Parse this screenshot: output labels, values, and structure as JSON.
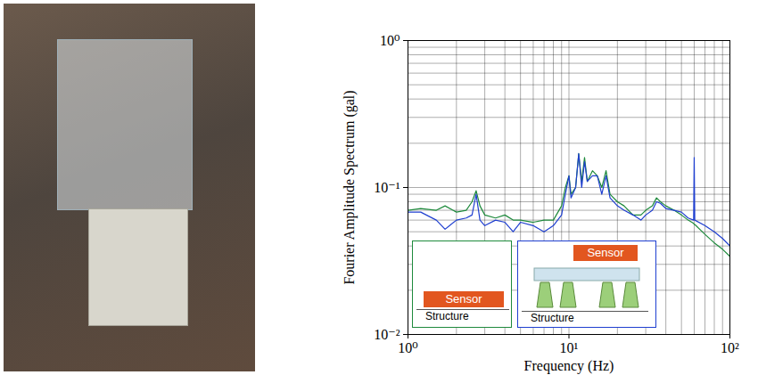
{
  "chart_data": {
    "type": "line",
    "xlabel": "Frequency (Hz)",
    "ylabel": "Fourier Amplitude Spectrum (gal)",
    "log": true,
    "grid": true,
    "xlim": [
      1,
      100
    ],
    "ylim": [
      0.01,
      1
    ],
    "xticks": [
      {
        "value": 1,
        "label": "10⁰"
      },
      {
        "value": 10,
        "label": "10¹"
      },
      {
        "value": 100,
        "label": "10²"
      }
    ],
    "yticks": [
      {
        "value": 0.01,
        "label": "10⁻²"
      },
      {
        "value": 0.1,
        "label": "10⁻¹"
      },
      {
        "value": 1,
        "label": "10⁰"
      }
    ],
    "x": [
      1,
      1.2,
      1.5,
      1.7,
      2,
      2.3,
      2.5,
      2.65,
      2.8,
      3,
      3.5,
      4,
      4.5,
      5,
      6,
      7,
      8,
      9,
      9.5,
      10,
      10.3,
      11,
      11.5,
      12,
      12.5,
      13,
      14,
      15,
      16,
      17,
      18,
      20,
      22,
      25,
      28,
      30,
      33,
      35,
      37,
      40,
      45,
      50,
      55,
      59.5,
      60,
      60.5,
      70,
      80,
      90,
      100
    ],
    "series": [
      {
        "color": "#1e8a3c",
        "values": [
          0.07,
          0.072,
          0.07,
          0.075,
          0.068,
          0.07,
          0.08,
          0.095,
          0.075,
          0.065,
          0.062,
          0.065,
          0.06,
          0.06,
          0.058,
          0.06,
          0.06,
          0.075,
          0.1,
          0.12,
          0.09,
          0.1,
          0.17,
          0.11,
          0.16,
          0.11,
          0.13,
          0.12,
          0.1,
          0.13,
          0.09,
          0.08,
          0.075,
          0.065,
          0.065,
          0.07,
          0.075,
          0.085,
          0.08,
          0.075,
          0.07,
          0.065,
          0.06,
          0.057,
          0.056,
          0.056,
          0.048,
          0.042,
          0.038,
          0.034
        ]
      },
      {
        "color": "#1f3fd0",
        "values": [
          0.068,
          0.068,
          0.06,
          0.052,
          0.06,
          0.062,
          0.065,
          0.09,
          0.06,
          0.055,
          0.06,
          0.058,
          0.05,
          0.058,
          0.055,
          0.05,
          0.055,
          0.065,
          0.09,
          0.12,
          0.085,
          0.1,
          0.17,
          0.1,
          0.15,
          0.11,
          0.12,
          0.12,
          0.09,
          0.12,
          0.085,
          0.075,
          0.07,
          0.065,
          0.06,
          0.065,
          0.07,
          0.08,
          0.078,
          0.072,
          0.07,
          0.068,
          0.062,
          0.06,
          0.16,
          0.06,
          0.055,
          0.05,
          0.045,
          0.04
        ]
      }
    ],
    "annotations": [
      {
        "texts": [
          "Sensor",
          "Structure"
        ],
        "color": "#1e8a3c"
      },
      {
        "texts": [
          "Sensor",
          "Structure"
        ],
        "color": "#1f3fd0"
      }
    ]
  }
}
